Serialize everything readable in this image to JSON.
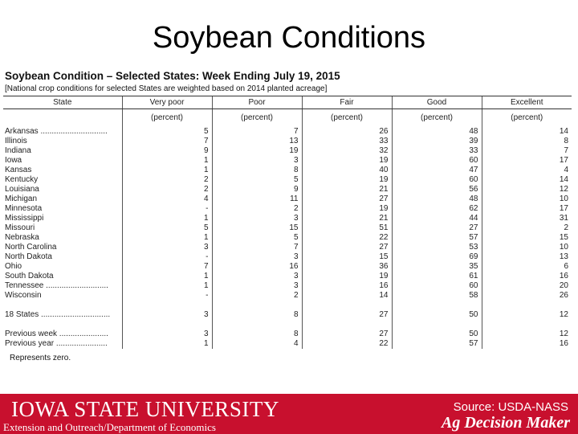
{
  "slide_title": "Soybean Conditions",
  "report": {
    "title": "Soybean Condition – Selected States: Week Ending July 19, 2015",
    "note": "[National crop conditions for selected States are weighted based on 2014 planted acreage]",
    "columns": [
      "State",
      "Very poor",
      "Poor",
      "Fair",
      "Good",
      "Excellent"
    ],
    "units": [
      "",
      "(percent)",
      "(percent)",
      "(percent)",
      "(percent)",
      "(percent)"
    ],
    "state_rows": [
      [
        "Arkansas ..............................",
        "5",
        "7",
        "26",
        "48",
        "14"
      ],
      [
        "Illinois",
        "7",
        "13",
        "33",
        "39",
        "8"
      ],
      [
        "Indiana",
        "9",
        "19",
        "32",
        "33",
        "7"
      ],
      [
        "Iowa",
        "1",
        "3",
        "19",
        "60",
        "17"
      ],
      [
        "Kansas",
        "1",
        "8",
        "40",
        "47",
        "4"
      ],
      [
        "Kentucky",
        "2",
        "5",
        "19",
        "60",
        "14"
      ],
      [
        "Louisiana",
        "2",
        "9",
        "21",
        "56",
        "12"
      ],
      [
        "Michigan",
        "4",
        "11",
        "27",
        "48",
        "10"
      ],
      [
        "Minnesota",
        "-",
        "2",
        "19",
        "62",
        "17"
      ],
      [
        "Mississippi",
        "1",
        "3",
        "21",
        "44",
        "31"
      ],
      [
        "Missouri",
        "5",
        "15",
        "51",
        "27",
        "2"
      ],
      [
        "Nebraska",
        "1",
        "5",
        "22",
        "57",
        "15"
      ],
      [
        "North Carolina",
        "3",
        "7",
        "27",
        "53",
        "10"
      ],
      [
        "North Dakota",
        "-",
        "3",
        "15",
        "69",
        "13"
      ],
      [
        "Ohio",
        "7",
        "16",
        "36",
        "35",
        "6"
      ],
      [
        "South Dakota",
        "1",
        "3",
        "19",
        "61",
        "16"
      ],
      [
        "Tennessee ............................",
        "1",
        "3",
        "16",
        "60",
        "20"
      ],
      [
        "Wisconsin",
        "-",
        "2",
        "14",
        "58",
        "26"
      ]
    ],
    "total_row": [
      "18 States ...............................",
      "3",
      "8",
      "27",
      "50",
      "12"
    ],
    "previous_week_row": [
      "Previous week ......................",
      "3",
      "8",
      "27",
      "50",
      "12"
    ],
    "previous_year_row": [
      "Previous year .......................",
      "1",
      "4",
      "22",
      "57",
      "16"
    ],
    "zero_note": "Represents zero."
  },
  "footer": {
    "university": "IOWA STATE UNIVERSITY",
    "extension": "Extension and Outreach/Department of Economics",
    "source": "Source: USDA-NASS",
    "brand": "Ag Decision Maker"
  },
  "colors": {
    "footer_bg": "#c8102e",
    "footer_text": "#ffffff"
  }
}
